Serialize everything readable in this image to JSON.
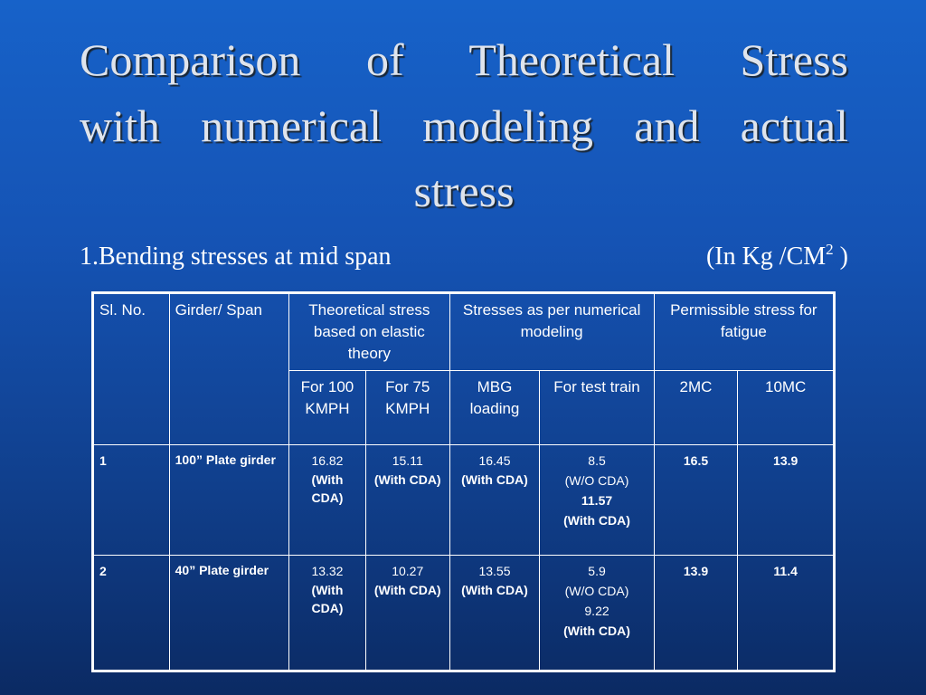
{
  "title_lines": [
    "Comparison of Theoretical Stress",
    "with numerical modeling and actual",
    "stress"
  ],
  "subtitle": {
    "left": "1.Bending stresses at mid span",
    "right_prefix": "(In Kg /CM",
    "right_sup": "2",
    "right_suffix": " )"
  },
  "table": {
    "headers": {
      "sl_no": "Sl. No.",
      "girder_span": "Girder/ Span",
      "theoretical": "Theoretical stress based on elastic theory",
      "numerical": "Stresses as per numerical modeling",
      "permissible": "Permissible stress for fatigue",
      "for_100": "For 100 KMPH",
      "for_75": "For 75 KMPH",
      "mbg": "MBG loading",
      "test_train": "For test train",
      "mc2": "2MC",
      "mc10": "10MC"
    },
    "rows": [
      {
        "sl": "1",
        "girder": "100” Plate girder",
        "for_100": {
          "value": "16.82",
          "note": "(With CDA)"
        },
        "for_75": {
          "value": "15.11",
          "note": "(With CDA)"
        },
        "mbg": {
          "value": "16.45",
          "note": "(With CDA)"
        },
        "test_train": {
          "value1": "8.5",
          "note1": "(W/O CDA)",
          "value2": "11.57",
          "note2": "(With CDA)"
        },
        "mc2": "16.5",
        "mc10": "13.9"
      },
      {
        "sl": "2",
        "girder": "40” Plate girder",
        "for_100": {
          "value": "13.32",
          "note": "(With CDA)"
        },
        "for_75": {
          "value": "10.27",
          "note": "(With CDA)"
        },
        "mbg": {
          "value": "13.55",
          "note": "(With CDA)"
        },
        "test_train": {
          "value1": "5.9",
          "note1": "(W/O CDA)",
          "value2": "9.22",
          "note2": "(With CDA)"
        },
        "mc2": "13.9",
        "mc10": "11.4"
      }
    ]
  }
}
